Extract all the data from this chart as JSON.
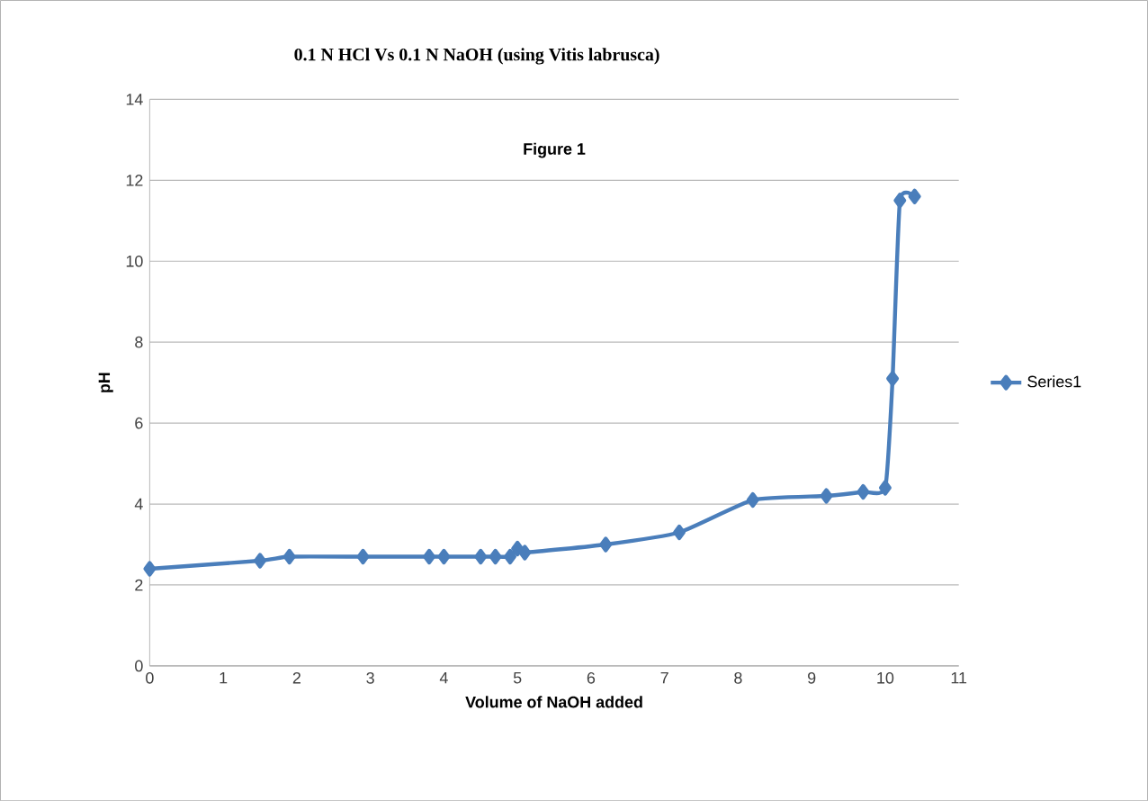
{
  "chart_data": {
    "type": "line",
    "title": "0.1 N HCl Vs 0.1 N NaOH (using Vitis labrusca)",
    "annotations": [
      "Figure 1"
    ],
    "xlabel": "Volume of NaOH added",
    "ylabel": "pH",
    "x": [
      0,
      1.5,
      1.9,
      2.9,
      3.8,
      4.0,
      4.5,
      4.7,
      4.9,
      5.0,
      5.1,
      6.2,
      7.2,
      8.2,
      9.2,
      9.7,
      10.0,
      10.1,
      10.2,
      10.4
    ],
    "series": [
      {
        "name": "Series1",
        "color": "#4a7ebb",
        "values": [
          2.4,
          2.6,
          2.7,
          2.7,
          2.7,
          2.7,
          2.7,
          2.7,
          2.7,
          2.9,
          2.8,
          3.0,
          3.3,
          4.1,
          4.2,
          4.3,
          4.4,
          7.1,
          11.5,
          11.6
        ]
      }
    ],
    "xlim": [
      0,
      11
    ],
    "xticks": [
      0,
      1,
      2,
      3,
      4,
      5,
      6,
      7,
      8,
      9,
      10,
      11
    ],
    "ylim": [
      0,
      14
    ],
    "yticks": [
      0,
      2,
      4,
      6,
      8,
      10,
      12,
      14
    ],
    "grid": "y",
    "legend": "right",
    "marker": "diamond",
    "line_style": "solid"
  }
}
